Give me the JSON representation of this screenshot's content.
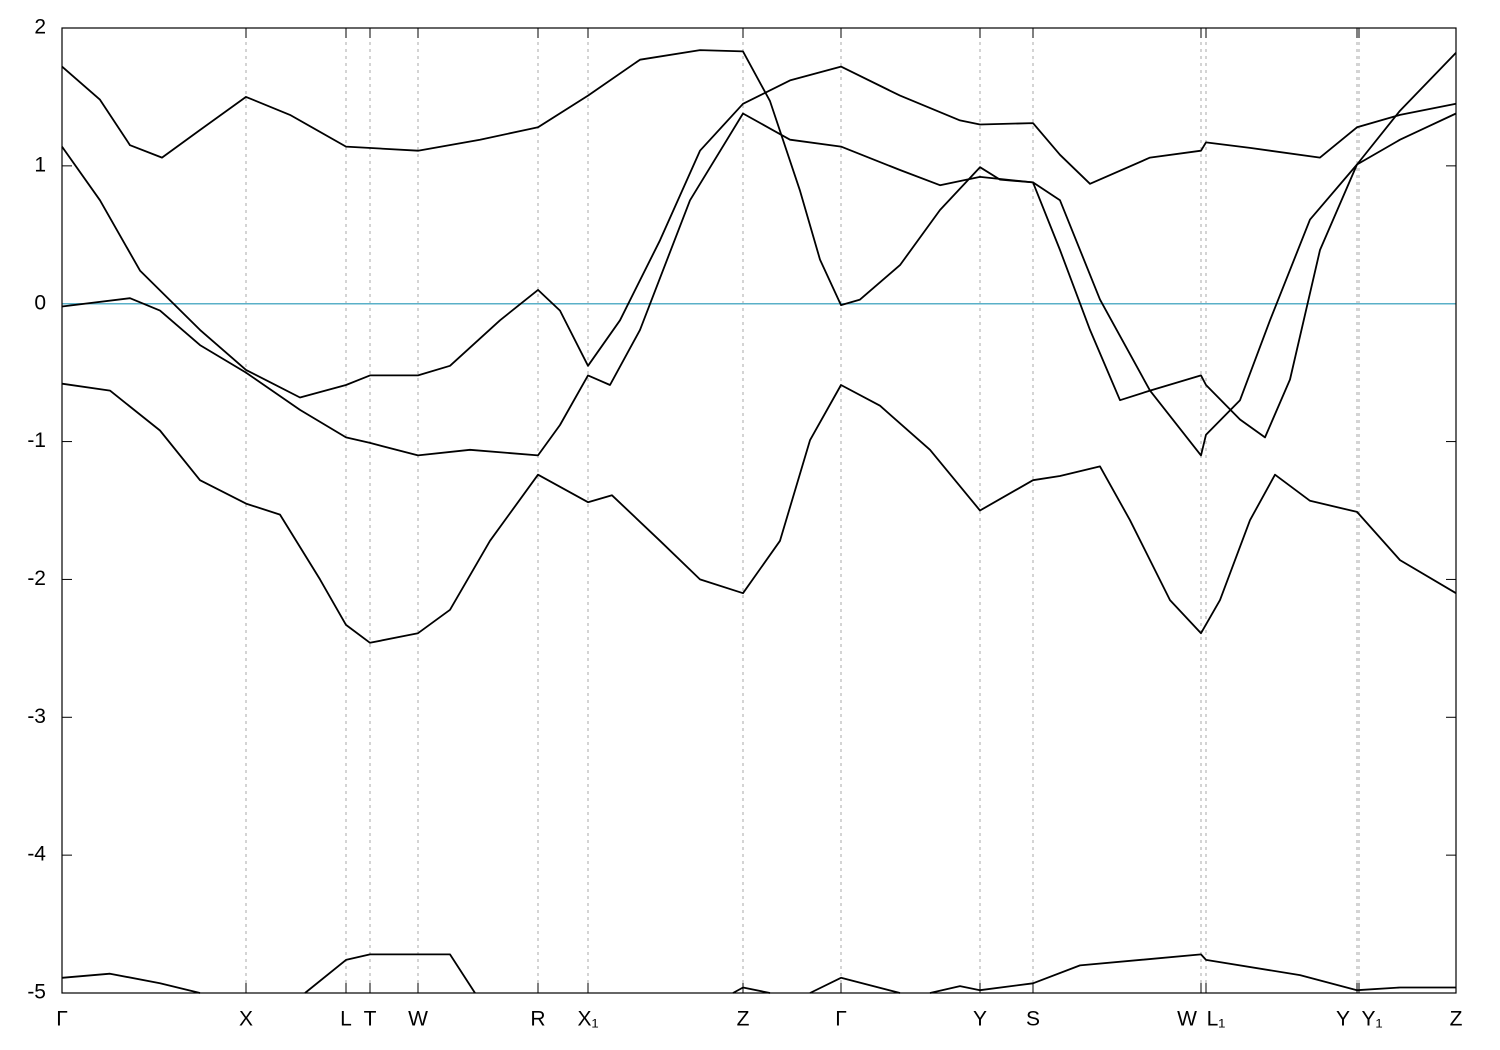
{
  "chart_data": {
    "type": "line",
    "xlim": [
      0,
      13.94
    ],
    "ylim": [
      -5,
      2
    ],
    "yticks": [
      -5,
      -4,
      -3,
      -2,
      -1,
      0,
      1,
      2
    ],
    "xticks": [
      {
        "value": 0,
        "label": "Γ"
      },
      {
        "value": 1.84,
        "label": "X"
      },
      {
        "value": 2.84,
        "label": "L"
      },
      {
        "value": 3.08,
        "label": "T"
      },
      {
        "value": 3.56,
        "label": "W"
      },
      {
        "value": 4.76,
        "label": "R"
      },
      {
        "value": 5.26,
        "label": "X₁"
      },
      {
        "value": 6.81,
        "label": "Z"
      },
      {
        "value": 7.79,
        "label": "Γ"
      },
      {
        "value": 9.18,
        "label": "Y"
      },
      {
        "value": 9.71,
        "label": "S"
      },
      {
        "value": 11.39,
        "label": "W"
      },
      {
        "value": 11.44,
        "label": "L₁"
      },
      {
        "value": 12.95,
        "label": "Y"
      },
      {
        "value": 12.97,
        "label": "Y₁"
      },
      {
        "value": 13.94,
        "label": "Z"
      }
    ],
    "x_grid": true,
    "zero_line": 0,
    "zero_line_color": "#5ab0c8",
    "series": [
      {
        "color": "#000000",
        "x": [
          0,
          0.38,
          0.68,
          1.0,
          1.38,
          1.84,
          2.28,
          2.84,
          3.56,
          4.18,
          4.76,
          5.26,
          5.78,
          6.38,
          6.81,
          7.08,
          7.38,
          7.58,
          7.79,
          7.98,
          8.38,
          8.78,
          9.18,
          9.38,
          9.71,
          9.98,
          10.28,
          10.58,
          10.88,
          11.39,
          11.44,
          11.78,
          12.03,
          12.28,
          12.58,
          12.95,
          13.38,
          13.94
        ],
        "values": [
          1.72,
          1.48,
          1.15,
          1.06,
          1.26,
          1.5,
          1.37,
          1.14,
          1.11,
          1.19,
          1.28,
          1.51,
          1.77,
          1.84,
          1.83,
          1.47,
          0.82,
          0.32,
          -0.01,
          0.03,
          0.28,
          0.68,
          0.99,
          0.9,
          0.88,
          0.39,
          -0.19,
          -0.7,
          -0.63,
          -0.52,
          -0.59,
          -0.84,
          -0.97,
          -0.55,
          0.39,
          1.01,
          1.19,
          1.38
        ]
      },
      {
        "color": "#000000",
        "x": [
          0,
          0.38,
          0.78,
          1.38,
          1.84,
          2.38,
          2.84,
          3.08,
          3.56,
          3.88,
          4.38,
          4.76,
          4.98,
          5.26,
          5.58,
          5.98,
          6.38,
          6.81,
          7.28,
          7.79,
          8.38,
          8.98,
          9.18,
          9.71,
          9.98,
          10.28,
          10.88,
          11.39,
          11.44,
          11.88,
          12.58,
          12.95,
          13.38,
          13.94
        ],
        "values": [
          1.14,
          0.75,
          0.24,
          -0.19,
          -0.48,
          -0.68,
          -0.59,
          -0.52,
          -0.52,
          -0.45,
          -0.12,
          0.1,
          -0.05,
          -0.45,
          -0.12,
          0.46,
          1.11,
          1.45,
          1.62,
          1.72,
          1.51,
          1.33,
          1.3,
          1.31,
          1.08,
          0.87,
          1.06,
          1.11,
          1.17,
          1.13,
          1.06,
          1.28,
          1.37,
          1.45
        ]
      },
      {
        "color": "#000000",
        "x": [
          0,
          0.68,
          0.98,
          1.38,
          1.84,
          2.38,
          2.84,
          3.08,
          3.56,
          4.08,
          4.76,
          4.98,
          5.26,
          5.48,
          5.78,
          6.28,
          6.81,
          7.28,
          7.79,
          8.38,
          8.78,
          9.18,
          9.71,
          9.98,
          10.38,
          10.88,
          11.39,
          11.44,
          11.78,
          12.08,
          12.48,
          12.95,
          13.38,
          13.94
        ],
        "values": [
          -0.02,
          0.04,
          -0.05,
          -0.3,
          -0.5,
          -0.77,
          -0.97,
          -1.01,
          -1.1,
          -1.06,
          -1.1,
          -0.88,
          -0.52,
          -0.59,
          -0.19,
          0.75,
          1.38,
          1.19,
          1.14,
          0.97,
          0.86,
          0.92,
          0.88,
          0.75,
          0.03,
          -0.63,
          -1.1,
          -0.95,
          -0.7,
          -0.12,
          0.61,
          1.01,
          1.4,
          1.82
        ]
      },
      {
        "color": "#000000",
        "x": [
          0,
          0.48,
          0.98,
          1.38,
          1.84,
          2.18,
          2.58,
          2.84,
          3.08,
          3.56,
          3.88,
          4.28,
          4.76,
          5.26,
          5.5,
          5.98,
          6.38,
          6.81,
          7.18,
          7.48,
          7.79,
          8.18,
          8.68,
          9.18,
          9.71,
          9.98,
          10.38,
          10.68,
          11.08,
          11.39,
          11.58,
          11.88,
          12.13,
          12.48,
          12.95,
          13.38,
          13.94
        ],
        "values": [
          -0.58,
          -0.63,
          -0.92,
          -1.28,
          -1.45,
          -1.53,
          -2.0,
          -2.33,
          -2.46,
          -2.39,
          -2.22,
          -1.72,
          -1.24,
          -1.44,
          -1.39,
          -1.72,
          -2.0,
          -2.1,
          -1.72,
          -0.99,
          -0.59,
          -0.74,
          -1.06,
          -1.5,
          -1.28,
          -1.25,
          -1.18,
          -1.57,
          -2.15,
          -2.39,
          -2.15,
          -1.57,
          -1.24,
          -1.43,
          -1.51,
          -1.86,
          -2.1
        ]
      },
      {
        "color": "#000000",
        "x": [
          0,
          0.48,
          0.98,
          1.38,
          2.0,
          2.43,
          2.84,
          3.08,
          3.88,
          4.13,
          5.5,
          6.71,
          6.81,
          7.08,
          7.3,
          7.48,
          7.79,
          8.38,
          8.5,
          8.68,
          8.98,
          9.18,
          9.71,
          10.18,
          11.39,
          11.44,
          12.38,
          12.95,
          13.38,
          13.94
        ],
        "values": [
          -4.89,
          -4.86,
          -4.93,
          -5.0,
          null,
          -5.0,
          -4.76,
          -4.72,
          -4.72,
          -5.0,
          null,
          -5.0,
          -4.96,
          -5.0,
          null,
          -5.0,
          -4.89,
          -5.0,
          null,
          -5.0,
          -4.95,
          -4.98,
          -4.93,
          -4.8,
          -4.72,
          -4.76,
          -4.87,
          -4.98,
          -4.96,
          -4.96
        ]
      }
    ]
  }
}
